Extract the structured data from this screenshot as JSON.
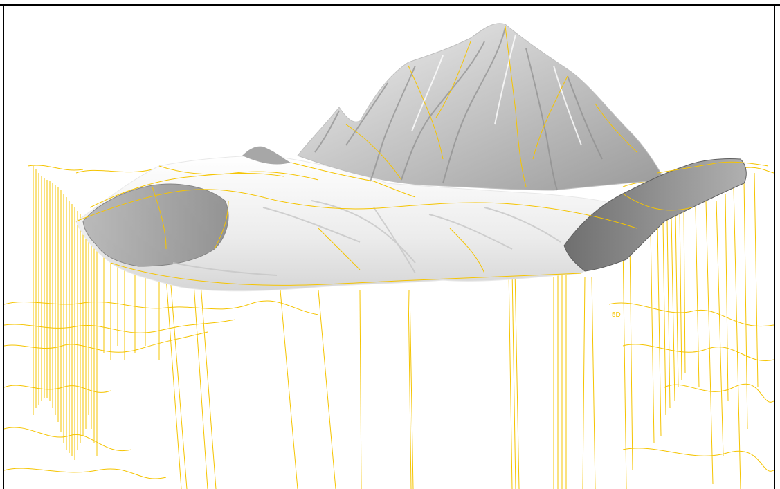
{
  "scene": {
    "background_color": "#ffffff",
    "frame_color": "#000000",
    "wire_color": "#f5c400",
    "terrain_light": "#f6f6f6",
    "terrain_mid": "#d9d9d9",
    "terrain_dark": "#8c8c8c",
    "stray_glyph": "5D"
  }
}
